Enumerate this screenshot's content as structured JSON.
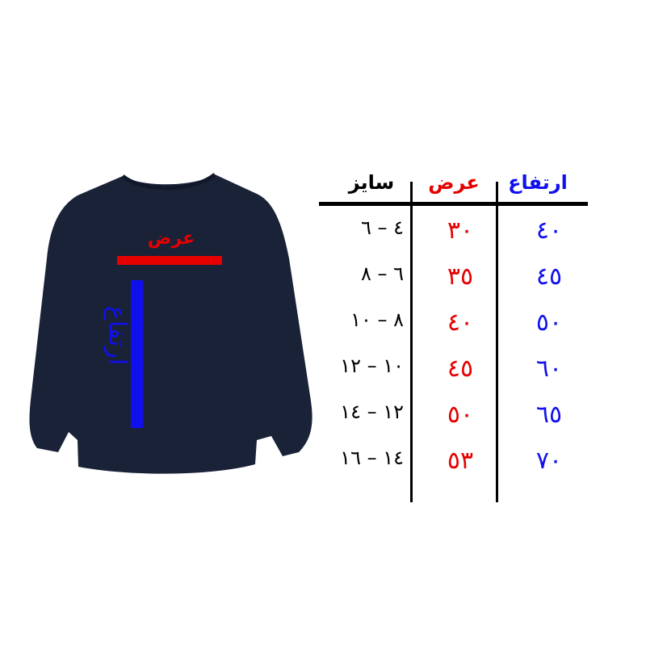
{
  "colors": {
    "garment": "#1a2238",
    "width_accent": "#e60000",
    "height_accent": "#1010ee",
    "text": "#000000"
  },
  "garment": {
    "icon": "sweatshirt-icon",
    "width_label": "عرض",
    "height_label": "ارتفاع"
  },
  "table": {
    "headers": {
      "height": "ارتفاع",
      "width": "عرض",
      "size": "سایز"
    },
    "rows": [
      {
        "size": "٤ – ٦",
        "width": "٣٠",
        "height": "٤٠"
      },
      {
        "size": "٦ – ٨",
        "width": "٣٥",
        "height": "٤٥"
      },
      {
        "size": "٨ – ١٠",
        "width": "٤٠",
        "height": "٥٠"
      },
      {
        "size": "١٠ – ١٢",
        "width": "٤٥",
        "height": "٦٠"
      },
      {
        "size": "١٢ – ١٤",
        "width": "٥٠",
        "height": "٦٥"
      },
      {
        "size": "١٤ – ١٦",
        "width": "٥٣",
        "height": "٧٠"
      }
    ]
  }
}
